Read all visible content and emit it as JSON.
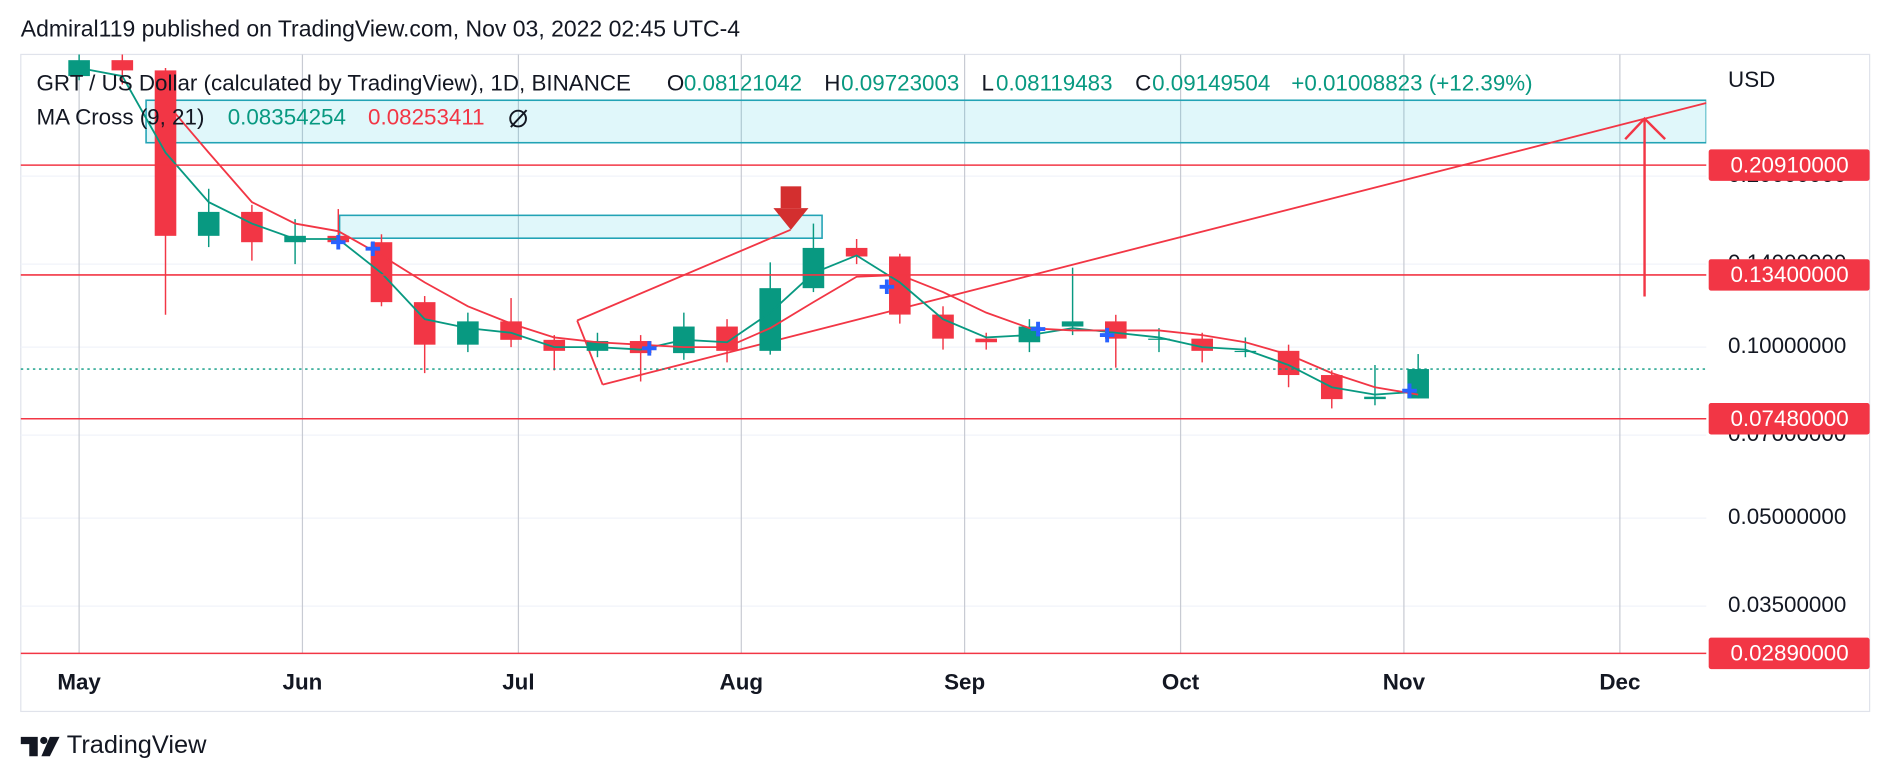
{
  "header": "Admiral119 published on TradingView.com, Nov 03, 2022 02:45 UTC-4",
  "legend": {
    "title": "GRT / US Dollar (calculated by TradingView), 1D, BINANCE",
    "o_label": "O",
    "o": 0.08121042,
    "h_label": "H",
    "h": 0.09723003,
    "l_label": "L",
    "l": 0.08119483,
    "c_label": "C",
    "c": 0.09149504,
    "change": "+0.01008823 (+12.39%)",
    "indicator": "MA Cross (9, 21)",
    "ma_fast": 0.08354254,
    "ma_slow": 0.08253411
  },
  "footer": "TradingView",
  "chart_data": {
    "type": "candlestick",
    "currency": "USD",
    "log_scale": true,
    "grid": true,
    "up_color": "#089981",
    "down_color": "#f23645",
    "categories": [
      null,
      null,
      null,
      null,
      null,
      null,
      null,
      null,
      null,
      null,
      null,
      null,
      null,
      null,
      null,
      null,
      null,
      null,
      null,
      null,
      null,
      null,
      null,
      null,
      null,
      null,
      null,
      null,
      null,
      null,
      null,
      null
    ],
    "open": [
      0.3,
      0.32,
      0.307,
      0.157,
      0.173,
      0.153,
      0.157,
      0.153,
      0.12,
      0.101,
      0.111,
      0.103,
      0.0985,
      0.1025,
      0.0976,
      0.1087,
      0.0985,
      0.127,
      0.1495,
      0.1444,
      0.1141,
      0.1035,
      0.102,
      0.1087,
      0.111,
      0.1035,
      0.1035,
      0.0985,
      0.0985,
      0.0893,
      0.081,
      0.08121042
    ],
    "high": [
      0.33,
      0.33,
      0.31,
      0.19,
      0.178,
      0.168,
      0.175,
      0.158,
      0.123,
      0.115,
      0.122,
      0.105,
      0.106,
      0.105,
      0.115,
      0.112,
      0.141,
      0.165,
      0.155,
      0.146,
      0.118,
      0.106,
      0.112,
      0.138,
      0.114,
      0.108,
      0.106,
      0.104,
      0.101,
      0.091,
      0.093,
      0.09723003
    ],
    "low": [
      0.295,
      0.29,
      0.114,
      0.15,
      0.142,
      0.14,
      0.15,
      0.118,
      0.09,
      0.098,
      0.1,
      0.091,
      0.096,
      0.087,
      0.095,
      0.094,
      0.097,
      0.125,
      0.14,
      0.11,
      0.099,
      0.099,
      0.098,
      0.105,
      0.092,
      0.098,
      0.094,
      0.096,
      0.085,
      0.078,
      0.079,
      0.08119483
    ],
    "close": [
      0.32,
      0.307,
      0.157,
      0.173,
      0.153,
      0.157,
      0.153,
      0.12,
      0.101,
      0.111,
      0.103,
      0.0985,
      0.1025,
      0.0976,
      0.1087,
      0.0985,
      0.127,
      0.1495,
      0.1444,
      0.1141,
      0.1035,
      0.102,
      0.1087,
      0.111,
      0.1035,
      0.1035,
      0.0985,
      0.0985,
      0.0893,
      0.081,
      0.0818,
      0.09149504
    ],
    "series": [
      {
        "color": "#089981",
        "values": [
          0.31,
          0.3,
          0.22,
          0.18,
          0.165,
          0.155,
          0.155,
          0.135,
          0.112,
          0.108,
          0.106,
          0.1,
          0.1,
          0.099,
          0.103,
          0.102,
          0.115,
          0.135,
          0.145,
          0.13,
          0.112,
          0.104,
          0.105,
          0.108,
          0.106,
          0.104,
          0.1,
          0.099,
          0.093,
          0.085,
          0.0825,
          0.0835
        ]
      },
      {
        "color": "#f23645",
        "values": [
          null,
          null,
          0.27,
          0.22,
          0.18,
          0.165,
          0.16,
          0.145,
          0.13,
          0.118,
          0.11,
          0.104,
          0.102,
          0.101,
          0.1,
          0.1,
          0.108,
          0.12,
          0.133,
          0.134,
          0.125,
          0.115,
          0.108,
          0.107,
          0.107,
          0.107,
          0.105,
          0.102,
          0.097,
          0.09,
          0.085,
          0.0825
        ]
      }
    ],
    "markers": {
      "color": "#2962ff",
      "x": [
        6,
        6.8,
        13.2,
        18.7,
        22.2,
        23.8,
        30.8
      ],
      "values": [
        0.153,
        0.149,
        0.0995,
        0.1277,
        0.1076,
        0.105,
        0.0838
      ]
    },
    "xlim": [
      -1.35,
      37.67
    ],
    "xticks": [
      {
        "value": 0,
        "label": "May"
      },
      {
        "value": 5.17,
        "label": "Jun"
      },
      {
        "value": 10.17,
        "label": "Jul"
      },
      {
        "value": 15.33,
        "label": "Aug"
      },
      {
        "value": 20.5,
        "label": "Sep"
      },
      {
        "value": 25.5,
        "label": "Oct"
      },
      {
        "value": 30.67,
        "label": "Nov"
      },
      {
        "value": 35.67,
        "label": "Dec"
      }
    ],
    "ylim": [
      0.0289,
      0.3275
    ],
    "yticks": [
      {
        "value": 0.035,
        "label": "0.03500000"
      },
      {
        "value": 0.05,
        "label": "0.05000000"
      },
      {
        "value": 0.07,
        "label": "0.07000000"
      },
      {
        "value": 0.1,
        "label": "0.10000000"
      },
      {
        "value": 0.14,
        "label": "0.14000000"
      },
      {
        "value": 0.2,
        "label": "0.20000000"
      }
    ],
    "hlines": [
      {
        "value": 0.2091,
        "label": "0.20910000",
        "color": "#f23645"
      },
      {
        "value": 0.134,
        "label": "0.13400000",
        "color": "#f23645"
      },
      {
        "value": 0.0748,
        "label": "0.07480000",
        "color": "#f23645"
      },
      {
        "value": 0.0289,
        "label": "0.02890000",
        "color": "#f23645"
      }
    ],
    "boxes": [
      {
        "x": [
          1.55,
          37.67
        ],
        "y": [
          0.229,
          0.272
        ]
      },
      {
        "x": [
          6.03,
          17.2
        ],
        "y": [
          0.1555,
          0.1706
        ]
      }
    ],
    "trendlines": [
      {
        "x": [
          11.53,
          16.47
        ],
        "y": [
          0.1114,
          0.1609
        ]
      },
      {
        "x": [
          11.53,
          12.12
        ],
        "y": [
          0.1114,
          0.0859
        ]
      },
      {
        "x": [
          12.12,
          37.67
        ],
        "y": [
          0.0859,
          0.269
        ]
      }
    ]
  }
}
